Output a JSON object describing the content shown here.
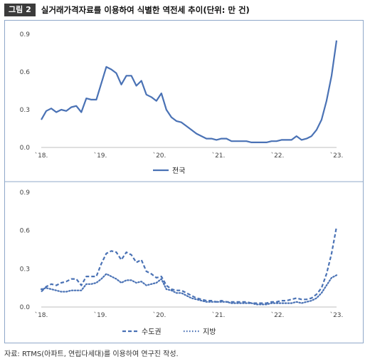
{
  "header": {
    "badge": "그림 2",
    "title": "실거래가격자료를 이용하여 식별한 역전세 추이(단위: 만 건)"
  },
  "source": "자료: RTMS(아파트, 연립다세대)를 이용하여 연구진 작성.",
  "colors": {
    "series": "#4a72b5",
    "frame": "#8fa8c9",
    "axis": "#bfbfbf"
  },
  "chart_data": [
    {
      "type": "line",
      "x_tick_labels": [
        "`18.",
        "`19.",
        "`20.",
        "`21.",
        "`22.",
        "`23."
      ],
      "ylim": [
        0.0,
        0.9
      ],
      "y_ticks": [
        "0.0",
        "0.3",
        "0.6",
        "0.9"
      ],
      "grid": false,
      "legend_position": "bottom",
      "series": [
        {
          "name": "전국",
          "style": "solid",
          "values": [
            0.22,
            0.29,
            0.31,
            0.28,
            0.3,
            0.29,
            0.32,
            0.33,
            0.28,
            0.39,
            0.38,
            0.38,
            0.51,
            0.64,
            0.62,
            0.59,
            0.5,
            0.57,
            0.57,
            0.49,
            0.53,
            0.42,
            0.4,
            0.37,
            0.43,
            0.3,
            0.24,
            0.21,
            0.2,
            0.17,
            0.14,
            0.11,
            0.09,
            0.07,
            0.07,
            0.06,
            0.07,
            0.07,
            0.05,
            0.05,
            0.05,
            0.05,
            0.04,
            0.04,
            0.04,
            0.04,
            0.05,
            0.05,
            0.06,
            0.06,
            0.06,
            0.09,
            0.06,
            0.07,
            0.09,
            0.14,
            0.22,
            0.37,
            0.57,
            0.85
          ]
        }
      ]
    },
    {
      "type": "line",
      "x_tick_labels": [
        "`18.",
        "`19.",
        "`20.",
        "`21.",
        "`22.",
        "`23."
      ],
      "ylim": [
        0.0,
        0.9
      ],
      "y_ticks": [
        "0.0",
        "0.3",
        "0.6",
        "0.9"
      ],
      "grid": false,
      "legend_position": "bottom",
      "series": [
        {
          "name": "수도권",
          "style": "dashed",
          "values": [
            0.12,
            0.16,
            0.18,
            0.17,
            0.19,
            0.2,
            0.22,
            0.22,
            0.17,
            0.24,
            0.24,
            0.24,
            0.34,
            0.42,
            0.44,
            0.43,
            0.37,
            0.43,
            0.41,
            0.35,
            0.37,
            0.28,
            0.26,
            0.23,
            0.24,
            0.17,
            0.14,
            0.13,
            0.13,
            0.11,
            0.09,
            0.07,
            0.06,
            0.05,
            0.05,
            0.04,
            0.05,
            0.04,
            0.04,
            0.04,
            0.04,
            0.04,
            0.03,
            0.03,
            0.03,
            0.03,
            0.04,
            0.04,
            0.05,
            0.05,
            0.06,
            0.07,
            0.06,
            0.06,
            0.07,
            0.1,
            0.15,
            0.26,
            0.42,
            0.63
          ]
        },
        {
          "name": "지방",
          "style": "dotted",
          "values": [
            0.14,
            0.15,
            0.14,
            0.13,
            0.12,
            0.12,
            0.13,
            0.13,
            0.13,
            0.18,
            0.18,
            0.19,
            0.22,
            0.26,
            0.24,
            0.22,
            0.19,
            0.21,
            0.21,
            0.19,
            0.2,
            0.17,
            0.18,
            0.19,
            0.22,
            0.14,
            0.13,
            0.11,
            0.11,
            0.09,
            0.07,
            0.06,
            0.05,
            0.04,
            0.04,
            0.04,
            0.04,
            0.04,
            0.03,
            0.03,
            0.03,
            0.03,
            0.03,
            0.02,
            0.02,
            0.02,
            0.03,
            0.03,
            0.03,
            0.03,
            0.03,
            0.04,
            0.03,
            0.04,
            0.05,
            0.07,
            0.11,
            0.17,
            0.23,
            0.25
          ]
        }
      ]
    }
  ]
}
